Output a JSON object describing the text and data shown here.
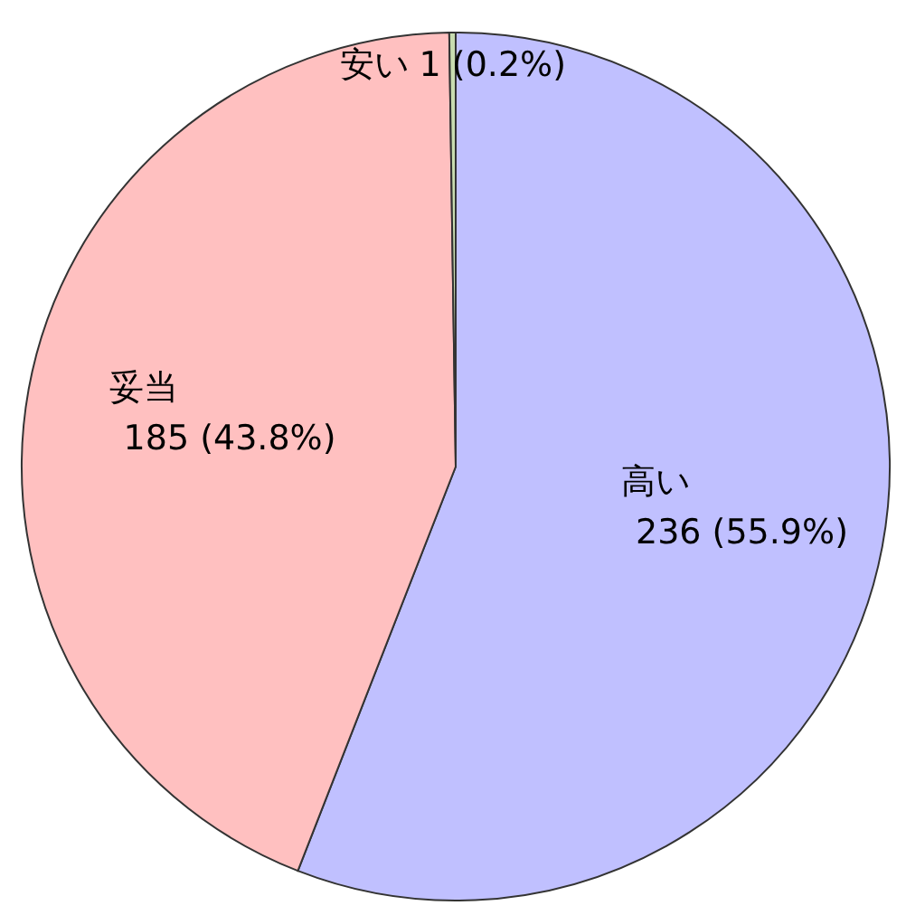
{
  "chart_data": {
    "type": "pie",
    "categories": [
      "高い",
      "妥当",
      "安い"
    ],
    "values": [
      236,
      185,
      1
    ],
    "colors": [
      "#c0c0ff",
      "#ffc0c0",
      "#c8dcb0"
    ],
    "value_labels": [
      "236 (55.9%)",
      "185 (43.8%)",
      "1 (0.2%)"
    ]
  }
}
